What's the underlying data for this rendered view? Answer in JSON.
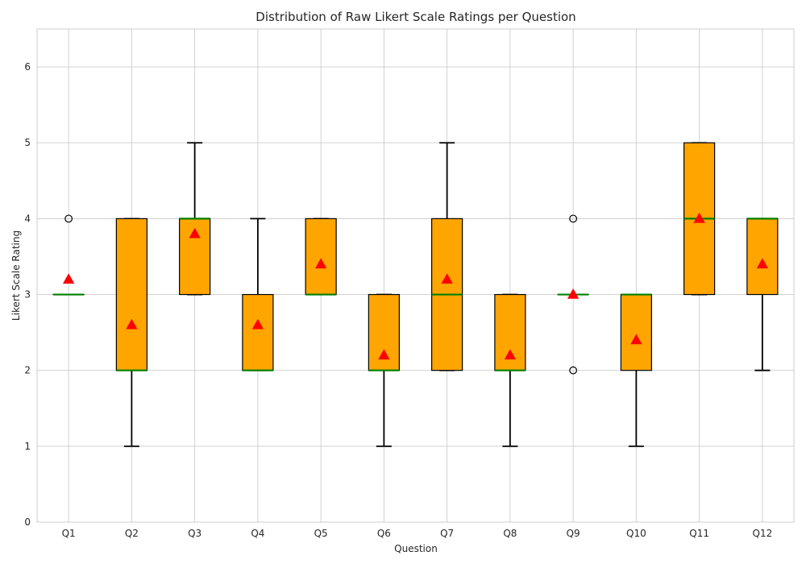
{
  "chart_data": {
    "type": "box",
    "title": "Distribution of Raw Likert Scale Ratings per Question",
    "xlabel": "Question",
    "ylabel": "Likert Scale Rating",
    "ylim": [
      0,
      6.5
    ],
    "yticks": [
      0,
      1,
      2,
      3,
      4,
      5,
      6
    ],
    "grid": true,
    "categories": [
      "Q1",
      "Q2",
      "Q3",
      "Q4",
      "Q5",
      "Q6",
      "Q7",
      "Q8",
      "Q9",
      "Q10",
      "Q11",
      "Q12"
    ],
    "boxes": [
      {
        "q1": 3,
        "median": 3,
        "q3": 3,
        "whislo": 3,
        "whishi": 3,
        "mean": 3.2,
        "fliers": [
          4
        ]
      },
      {
        "q1": 2,
        "median": 2,
        "q3": 4,
        "whislo": 1,
        "whishi": 4,
        "mean": 2.6,
        "fliers": []
      },
      {
        "q1": 3,
        "median": 4,
        "q3": 4,
        "whislo": 3,
        "whishi": 5,
        "mean": 3.8,
        "fliers": []
      },
      {
        "q1": 2,
        "median": 2,
        "q3": 3,
        "whislo": 2,
        "whishi": 4,
        "mean": 2.6,
        "fliers": []
      },
      {
        "q1": 3,
        "median": 3,
        "q3": 4,
        "whislo": 3,
        "whishi": 4,
        "mean": 3.4,
        "fliers": []
      },
      {
        "q1": 2,
        "median": 2,
        "q3": 3,
        "whislo": 1,
        "whishi": 3,
        "mean": 2.2,
        "fliers": []
      },
      {
        "q1": 2,
        "median": 3,
        "q3": 4,
        "whislo": 2,
        "whishi": 5,
        "mean": 3.2,
        "fliers": []
      },
      {
        "q1": 2,
        "median": 2,
        "q3": 3,
        "whislo": 1,
        "whishi": 3,
        "mean": 2.2,
        "fliers": []
      },
      {
        "q1": 3,
        "median": 3,
        "q3": 3,
        "whislo": 3,
        "whishi": 3,
        "mean": 3.0,
        "fliers": [
          4,
          2
        ]
      },
      {
        "q1": 2,
        "median": 3,
        "q3": 3,
        "whislo": 1,
        "whishi": 3,
        "mean": 2.4,
        "fliers": []
      },
      {
        "q1": 3,
        "median": 4,
        "q3": 5,
        "whislo": 3,
        "whishi": 5,
        "mean": 4.0,
        "fliers": []
      },
      {
        "q1": 3,
        "median": 4,
        "q3": 4,
        "whislo": 2,
        "whishi": 4,
        "mean": 3.4,
        "fliers": []
      }
    ],
    "colors": {
      "box_fill": "#ffa500",
      "box_edge": "#000000",
      "median": "#008000",
      "mean_marker": "#ff0000",
      "whisker": "#000000",
      "grid": "#cccccc",
      "axes_edge": "#cccccc"
    }
  }
}
